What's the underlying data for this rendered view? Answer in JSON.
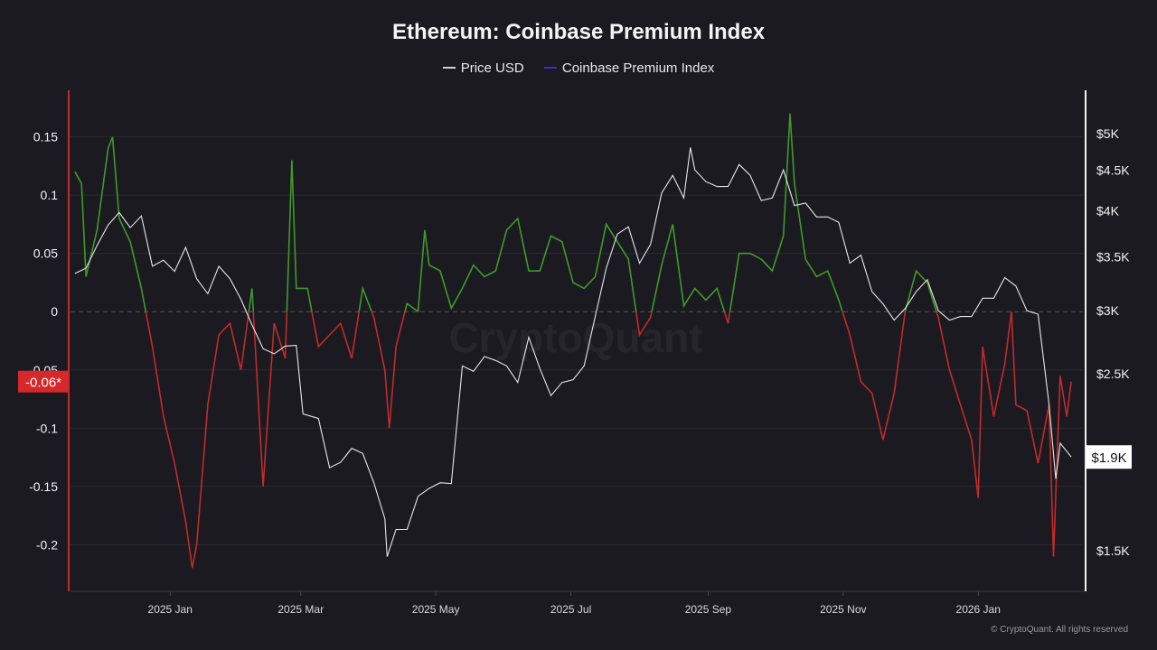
{
  "chart_data": {
    "type": "line",
    "title": "Ethereum: Coinbase Premium Index",
    "legend_position": "top-center",
    "grid": true,
    "x_ticks": [
      "2025 Jan",
      "2025 Mar",
      "2025 May",
      "2025 Jul",
      "2025 Sep",
      "2025 Nov",
      "2026 Jan"
    ],
    "x_tick_dates": [
      "2025-01-01",
      "2025-03-01",
      "2025-05-01",
      "2025-07-01",
      "2025-09-01",
      "2025-11-01",
      "2026-01-01"
    ],
    "x_range": [
      "2024-11-17",
      "2026-02-14"
    ],
    "y_left": {
      "ticks": [
        0.15,
        0.1,
        0.05,
        0,
        -0.05,
        -0.1,
        -0.15,
        -0.2
      ],
      "tick_labels": [
        "0.15",
        "0.1",
        "0.05",
        "0",
        "-0.05",
        "-0.1",
        "-0.15",
        "-0.2"
      ],
      "range": [
        -0.24,
        0.19
      ],
      "current_label": "-0.06*",
      "current_label_value": -0.06
    },
    "y_right": {
      "scale": "log",
      "ticks": [
        5000,
        4500,
        4000,
        3500,
        3000,
        2500,
        1500
      ],
      "tick_labels": [
        "$5K",
        "$4.5K",
        "$4K",
        "$3.5K",
        "$3K",
        "$2.5K",
        "$1.5K"
      ],
      "range": [
        1330,
        5650
      ],
      "current_label": "$1.9K",
      "current_label_value": 1960
    },
    "series": [
      {
        "name": "Price USD",
        "axis": "right",
        "color": "#e6e6ea",
        "points": [
          [
            "2024-11-19",
            3330
          ],
          [
            "2024-11-24",
            3380
          ],
          [
            "2024-11-29",
            3610
          ],
          [
            "2024-12-04",
            3830
          ],
          [
            "2024-12-09",
            3970
          ],
          [
            "2024-12-14",
            3800
          ],
          [
            "2024-12-19",
            3930
          ],
          [
            "2024-12-24",
            3400
          ],
          [
            "2024-12-29",
            3460
          ],
          [
            "2025-01-03",
            3350
          ],
          [
            "2025-01-08",
            3590
          ],
          [
            "2025-01-13",
            3280
          ],
          [
            "2025-01-18",
            3140
          ],
          [
            "2025-01-23",
            3400
          ],
          [
            "2025-01-28",
            3280
          ],
          [
            "2025-02-02",
            3090
          ],
          [
            "2025-02-07",
            2870
          ],
          [
            "2025-02-12",
            2680
          ],
          [
            "2025-02-17",
            2640
          ],
          [
            "2025-02-22",
            2700
          ],
          [
            "2025-02-27",
            2705
          ],
          [
            "2025-03-02",
            2220
          ],
          [
            "2025-03-09",
            2190
          ],
          [
            "2025-03-14",
            1900
          ],
          [
            "2025-03-19",
            1930
          ],
          [
            "2025-03-24",
            2010
          ],
          [
            "2025-03-29",
            1980
          ],
          [
            "2025-04-03",
            1820
          ],
          [
            "2025-04-08",
            1640
          ],
          [
            "2025-04-09",
            1470
          ],
          [
            "2025-04-13",
            1590
          ],
          [
            "2025-04-18",
            1590
          ],
          [
            "2025-04-23",
            1750
          ],
          [
            "2025-04-28",
            1790
          ],
          [
            "2025-05-03",
            1820
          ],
          [
            "2025-05-08",
            1815
          ],
          [
            "2025-05-13",
            2550
          ],
          [
            "2025-05-18",
            2510
          ],
          [
            "2025-05-23",
            2620
          ],
          [
            "2025-05-28",
            2590
          ],
          [
            "2025-06-02",
            2550
          ],
          [
            "2025-06-07",
            2430
          ],
          [
            "2025-06-12",
            2770
          ],
          [
            "2025-06-17",
            2530
          ],
          [
            "2025-06-22",
            2340
          ],
          [
            "2025-06-27",
            2430
          ],
          [
            "2025-07-02",
            2450
          ],
          [
            "2025-07-07",
            2550
          ],
          [
            "2025-07-12",
            2940
          ],
          [
            "2025-07-17",
            3380
          ],
          [
            "2025-07-22",
            3730
          ],
          [
            "2025-07-27",
            3810
          ],
          [
            "2025-08-01",
            3430
          ],
          [
            "2025-08-06",
            3620
          ],
          [
            "2025-08-11",
            4200
          ],
          [
            "2025-08-16",
            4420
          ],
          [
            "2025-08-21",
            4140
          ],
          [
            "2025-08-24",
            4790
          ],
          [
            "2025-08-26",
            4490
          ],
          [
            "2025-08-31",
            4340
          ],
          [
            "2025-09-05",
            4280
          ],
          [
            "2025-09-10",
            4280
          ],
          [
            "2025-09-15",
            4560
          ],
          [
            "2025-09-20",
            4420
          ],
          [
            "2025-09-25",
            4110
          ],
          [
            "2025-09-30",
            4140
          ],
          [
            "2025-10-05",
            4490
          ],
          [
            "2025-10-10",
            4050
          ],
          [
            "2025-10-15",
            4080
          ],
          [
            "2025-10-20",
            3920
          ],
          [
            "2025-10-25",
            3920
          ],
          [
            "2025-10-30",
            3860
          ],
          [
            "2025-11-04",
            3430
          ],
          [
            "2025-11-09",
            3510
          ],
          [
            "2025-11-14",
            3160
          ],
          [
            "2025-11-19",
            3050
          ],
          [
            "2025-11-24",
            2910
          ],
          [
            "2025-11-29",
            3010
          ],
          [
            "2025-12-04",
            3160
          ],
          [
            "2025-12-09",
            3270
          ],
          [
            "2025-12-14",
            2990
          ],
          [
            "2025-12-19",
            2910
          ],
          [
            "2025-12-24",
            2940
          ],
          [
            "2025-12-29",
            2940
          ],
          [
            "2026-01-03",
            3100
          ],
          [
            "2026-01-08",
            3100
          ],
          [
            "2026-01-13",
            3290
          ],
          [
            "2026-01-18",
            3210
          ],
          [
            "2026-01-23",
            2990
          ],
          [
            "2026-01-28",
            2960
          ],
          [
            "2026-02-02",
            2280
          ],
          [
            "2026-02-05",
            1840
          ],
          [
            "2026-02-07",
            2040
          ],
          [
            "2026-02-12",
            1960
          ]
        ]
      },
      {
        "name": "Coinbase Premium Index",
        "axis": "left",
        "color": "#3b2fc9",
        "positive_color": "#3f9a2a",
        "negative_color": "#c22b2b",
        "points": [
          [
            "2024-11-19",
            0.12
          ],
          [
            "2024-11-22",
            0.11
          ],
          [
            "2024-11-24",
            0.03
          ],
          [
            "2024-11-29",
            0.07
          ],
          [
            "2024-12-04",
            0.14
          ],
          [
            "2024-12-06",
            0.15
          ],
          [
            "2024-12-09",
            0.08
          ],
          [
            "2024-12-14",
            0.06
          ],
          [
            "2024-12-19",
            0.02
          ],
          [
            "2024-12-24",
            -0.03
          ],
          [
            "2024-12-29",
            -0.09
          ],
          [
            "2025-01-03",
            -0.13
          ],
          [
            "2025-01-08",
            -0.18
          ],
          [
            "2025-01-11",
            -0.22
          ],
          [
            "2025-01-13",
            -0.2
          ],
          [
            "2025-01-18",
            -0.08
          ],
          [
            "2025-01-23",
            -0.02
          ],
          [
            "2025-01-28",
            -0.01
          ],
          [
            "2025-02-02",
            -0.05
          ],
          [
            "2025-02-07",
            0.02
          ],
          [
            "2025-02-12",
            -0.15
          ],
          [
            "2025-02-17",
            -0.01
          ],
          [
            "2025-02-22",
            -0.04
          ],
          [
            "2025-02-25",
            0.13
          ],
          [
            "2025-02-27",
            0.02
          ],
          [
            "2025-03-04",
            0.02
          ],
          [
            "2025-03-09",
            -0.03
          ],
          [
            "2025-03-14",
            -0.02
          ],
          [
            "2025-03-19",
            -0.01
          ],
          [
            "2025-03-24",
            -0.04
          ],
          [
            "2025-03-29",
            0.02
          ],
          [
            "2025-04-03",
            -0.005
          ],
          [
            "2025-04-08",
            -0.05
          ],
          [
            "2025-04-10",
            -0.1
          ],
          [
            "2025-04-13",
            -0.03
          ],
          [
            "2025-04-18",
            0.007
          ],
          [
            "2025-04-23",
            0
          ],
          [
            "2025-04-26",
            0.07
          ],
          [
            "2025-04-28",
            0.04
          ],
          [
            "2025-05-03",
            0.035
          ],
          [
            "2025-05-08",
            0.003
          ],
          [
            "2025-05-13",
            0.02
          ],
          [
            "2025-05-18",
            0.04
          ],
          [
            "2025-05-23",
            0.03
          ],
          [
            "2025-05-28",
            0.035
          ],
          [
            "2025-06-02",
            0.07
          ],
          [
            "2025-06-07",
            0.08
          ],
          [
            "2025-06-12",
            0.035
          ],
          [
            "2025-06-17",
            0.035
          ],
          [
            "2025-06-22",
            0.065
          ],
          [
            "2025-06-27",
            0.06
          ],
          [
            "2025-07-02",
            0.025
          ],
          [
            "2025-07-07",
            0.02
          ],
          [
            "2025-07-12",
            0.03
          ],
          [
            "2025-07-17",
            0.075
          ],
          [
            "2025-07-22",
            0.06
          ],
          [
            "2025-07-27",
            0.045
          ],
          [
            "2025-08-01",
            -0.02
          ],
          [
            "2025-08-06",
            -0.005
          ],
          [
            "2025-08-11",
            0.04
          ],
          [
            "2025-08-16",
            0.075
          ],
          [
            "2025-08-21",
            0.005
          ],
          [
            "2025-08-26",
            0.02
          ],
          [
            "2025-08-31",
            0.01
          ],
          [
            "2025-09-05",
            0.02
          ],
          [
            "2025-09-10",
            -0.01
          ],
          [
            "2025-09-15",
            0.05
          ],
          [
            "2025-09-20",
            0.05
          ],
          [
            "2025-09-25",
            0.045
          ],
          [
            "2025-09-30",
            0.035
          ],
          [
            "2025-10-05",
            0.065
          ],
          [
            "2025-10-08",
            0.17
          ],
          [
            "2025-10-10",
            0.11
          ],
          [
            "2025-10-15",
            0.045
          ],
          [
            "2025-10-20",
            0.03
          ],
          [
            "2025-10-25",
            0.035
          ],
          [
            "2025-10-30",
            0.01
          ],
          [
            "2025-11-04",
            -0.02
          ],
          [
            "2025-11-09",
            -0.06
          ],
          [
            "2025-11-14",
            -0.07
          ],
          [
            "2025-11-19",
            -0.11
          ],
          [
            "2025-11-24",
            -0.07
          ],
          [
            "2025-11-29",
            0
          ],
          [
            "2025-12-04",
            0.035
          ],
          [
            "2025-12-09",
            0.025
          ],
          [
            "2025-12-14",
            -0.005
          ],
          [
            "2025-12-19",
            -0.05
          ],
          [
            "2025-12-24",
            -0.08
          ],
          [
            "2025-12-29",
            -0.11
          ],
          [
            "2026-01-01",
            -0.16
          ],
          [
            "2026-01-03",
            -0.03
          ],
          [
            "2026-01-08",
            -0.09
          ],
          [
            "2026-01-13",
            -0.045
          ],
          [
            "2026-01-16",
            0
          ],
          [
            "2026-01-18",
            -0.08
          ],
          [
            "2026-01-23",
            -0.085
          ],
          [
            "2026-01-28",
            -0.13
          ],
          [
            "2026-02-02",
            -0.08
          ],
          [
            "2026-02-04",
            -0.21
          ],
          [
            "2026-02-07",
            -0.055
          ],
          [
            "2026-02-10",
            -0.09
          ],
          [
            "2026-02-12",
            -0.06
          ]
        ]
      }
    ]
  },
  "legend": {
    "price_label": "Price USD",
    "premium_label": "Coinbase Premium Index"
  },
  "watermark": "CryptoQuant",
  "footer": "© CryptoQuant. All rights reserved"
}
